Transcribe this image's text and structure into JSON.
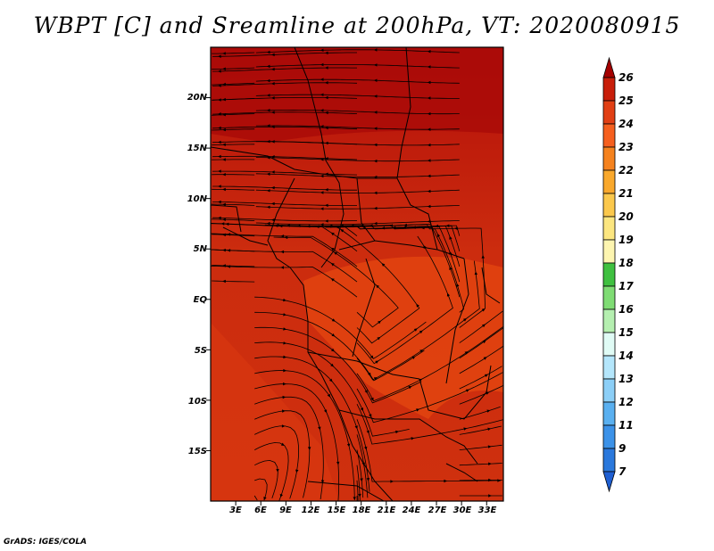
{
  "title": "WBPT [C] and Sreamline at 200hPa, VT: 2020080915",
  "credit": "GrADS: IGES/COLA",
  "map": {
    "lat_labels": [
      "20N",
      "15N",
      "10N",
      "5N",
      "EQ",
      "5S",
      "10S",
      "15S"
    ],
    "lon_labels": [
      "3E",
      "6E",
      "9E",
      "12E",
      "15E",
      "18E",
      "21E",
      "24E",
      "27E",
      "30E",
      "33E"
    ],
    "lat_values": [
      20,
      15,
      10,
      5,
      0,
      -5,
      -10,
      -15
    ],
    "lon_values": [
      3,
      6,
      9,
      12,
      15,
      18,
      21,
      24,
      27,
      30,
      33
    ],
    "extent": {
      "lon_min": 0,
      "lon_max": 35,
      "lat_min": -20,
      "lat_max": 25
    },
    "colors": {
      "deep_red": "#b3100b",
      "red": "#cc2a0e",
      "red_orange": "#e0420f",
      "boundary": "#000000",
      "streamline": "#000000"
    }
  },
  "colorbar": {
    "labels": [
      "26",
      "25",
      "24",
      "23",
      "22",
      "21",
      "20",
      "19",
      "18",
      "17",
      "16",
      "15",
      "14",
      "13",
      "12",
      "11",
      "9",
      "7"
    ],
    "colors": [
      "#a50000",
      "#c81e0a",
      "#e13f14",
      "#f55f1e",
      "#f5821e",
      "#f9a82c",
      "#fbc84c",
      "#fce680",
      "#fdf5b0",
      "#3fc040",
      "#7fdc74",
      "#b5efb0",
      "#e0fbf5",
      "#b4e6fb",
      "#8ccff7",
      "#5ab0f0",
      "#3c92e8",
      "#2a78dc",
      "#1e5fd2"
    ]
  }
}
